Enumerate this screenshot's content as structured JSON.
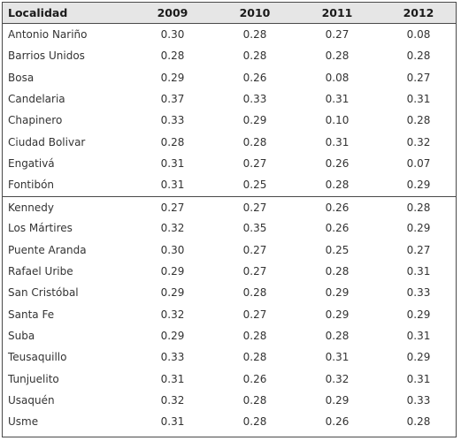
{
  "table": {
    "headers": {
      "name": "Localidad",
      "y2009": "2009",
      "y2010": "2010",
      "y2011": "2011",
      "y2012": "2012"
    },
    "rows": [
      {
        "name": "Antonio Nariño",
        "y2009": "0.30",
        "y2010": "0.28",
        "y2011": "0.27",
        "y2012": "0.08"
      },
      {
        "name": "Barrios Unidos",
        "y2009": "0.28",
        "y2010": "0.28",
        "y2011": "0.28",
        "y2012": "0.28"
      },
      {
        "name": "Bosa",
        "y2009": "0.29",
        "y2010": "0.26",
        "y2011": "0.08",
        "y2012": "0.27"
      },
      {
        "name": "Candelaria",
        "y2009": "0.37",
        "y2010": "0.33",
        "y2011": "0.31",
        "y2012": "0.31"
      },
      {
        "name": "Chapinero",
        "y2009": "0.33",
        "y2010": "0.29",
        "y2011": "0.10",
        "y2012": "0.28"
      },
      {
        "name": "Ciudad Bolivar",
        "y2009": "0.28",
        "y2010": "0.28",
        "y2011": "0.31",
        "y2012": "0.32"
      },
      {
        "name": "Engativá",
        "y2009": "0.31",
        "y2010": "0.27",
        "y2011": "0.26",
        "y2012": "0.07"
      },
      {
        "name": "Fontibón",
        "y2009": "0.31",
        "y2010": "0.25",
        "y2011": "0.28",
        "y2012": "0.29"
      },
      {
        "name": "Kennedy",
        "y2009": "0.27",
        "y2010": "0.27",
        "y2011": "0.26",
        "y2012": "0.28"
      },
      {
        "name": "Los Mártires",
        "y2009": "0.32",
        "y2010": "0.35",
        "y2011": "0.26",
        "y2012": "0.29"
      },
      {
        "name": "Puente Aranda",
        "y2009": "0.30",
        "y2010": "0.27",
        "y2011": "0.25",
        "y2012": "0.27"
      },
      {
        "name": "Rafael Uribe",
        "y2009": "0.29",
        "y2010": "0.27",
        "y2011": "0.28",
        "y2012": "0.31"
      },
      {
        "name": "San Cristóbal",
        "y2009": "0.29",
        "y2010": "0.28",
        "y2011": "0.29",
        "y2012": "0.33"
      },
      {
        "name": "Santa Fe",
        "y2009": "0.32",
        "y2010": "0.27",
        "y2011": "0.29",
        "y2012": "0.29"
      },
      {
        "name": "Suba",
        "y2009": "0.29",
        "y2010": "0.28",
        "y2011": "0.28",
        "y2012": "0.31"
      },
      {
        "name": "Teusaquillo",
        "y2009": "0.33",
        "y2010": "0.28",
        "y2011": "0.31",
        "y2012": "0.29"
      },
      {
        "name": "Tunjuelito",
        "y2009": "0.31",
        "y2010": "0.26",
        "y2011": "0.32",
        "y2012": "0.31"
      },
      {
        "name": "Usaquén",
        "y2009": "0.32",
        "y2010": "0.28",
        "y2011": "0.29",
        "y2012": "0.33"
      },
      {
        "name": "Usme",
        "y2009": "0.31",
        "y2010": "0.28",
        "y2011": "0.26",
        "y2012": "0.28"
      }
    ]
  },
  "colors": {
    "header_bg": "#e6e6e6",
    "border": "#4a4a4a",
    "text": "#333333"
  }
}
